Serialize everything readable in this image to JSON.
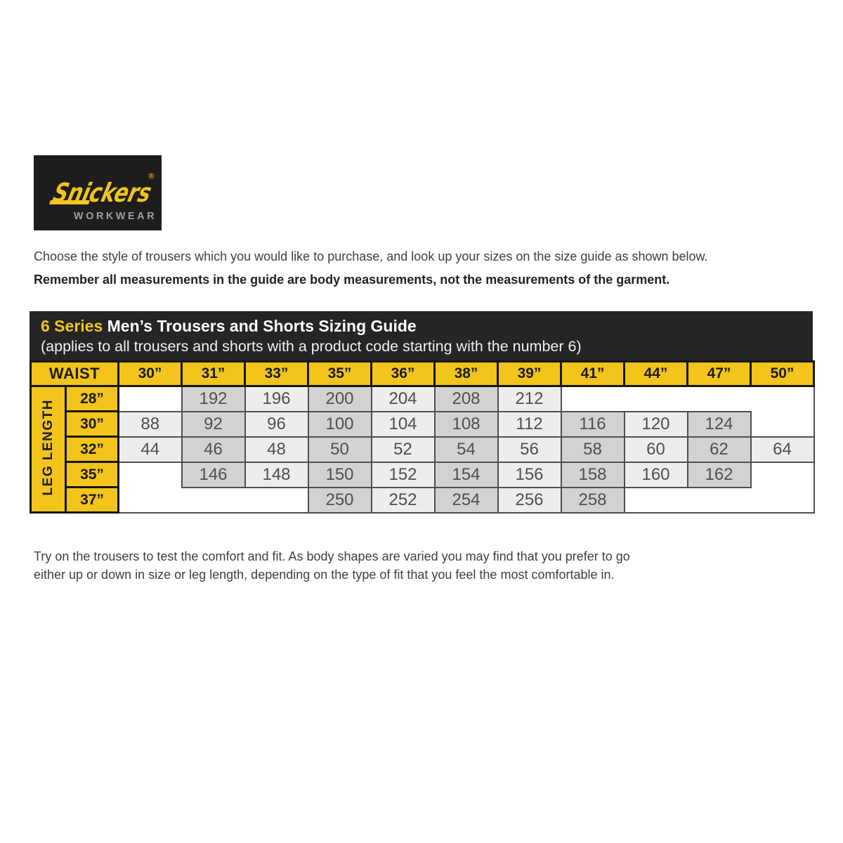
{
  "logo": {
    "brand": "Snickers",
    "registered": "®",
    "sub_brand": "WORKWEAR"
  },
  "intro": {
    "line1": "Choose the style of trousers which you would like to purchase, and look up your sizes on the size guide as shown below.",
    "line2_bold": "Remember all measurements in the guide are body measurements, not the measurements of the garment."
  },
  "sizing_table": {
    "series_label": "6 Series",
    "title": " Men’s Trousers and Shorts Sizing Guide",
    "subtitle": "(applies to all trousers and shorts with a product code starting with the number 6)",
    "waist_label": "WAIST",
    "leg_length_label": "LEG LENGTH",
    "waist_sizes": [
      "30”",
      "31”",
      "33”",
      "35”",
      "36”",
      "38”",
      "39”",
      "41”",
      "44”",
      "47”",
      "50”"
    ],
    "leg_rows": [
      {
        "leg": "28”",
        "values": [
          null,
          "192",
          "196",
          "200",
          "204",
          "208",
          "212",
          null,
          null,
          null,
          null
        ]
      },
      {
        "leg": "30”",
        "values": [
          "88",
          "92",
          "96",
          "100",
          "104",
          "108",
          "112",
          "116",
          "120",
          "124",
          null
        ]
      },
      {
        "leg": "32”",
        "values": [
          "44",
          "46",
          "48",
          "50",
          "52",
          "54",
          "56",
          "58",
          "60",
          "62",
          "64"
        ]
      },
      {
        "leg": "35”",
        "values": [
          null,
          "146",
          "148",
          "150",
          "152",
          "154",
          "156",
          "158",
          "160",
          "162",
          null
        ]
      },
      {
        "leg": "37”",
        "values": [
          null,
          null,
          null,
          "250",
          "252",
          "254",
          "256",
          "258",
          null,
          null,
          null
        ]
      }
    ]
  },
  "footer": {
    "line1": "Try on the trousers to test the comfort and fit. As body shapes are varied you may find that you prefer to go",
    "line2": "either up or down in size or leg length, depending on the type of fit that you feel the most comfortable in."
  },
  "colors": {
    "brand_yellow": "#f2c41c",
    "logo_black": "#1d1d1d",
    "title_bar_bg": "#252525",
    "cell_light": "#ededed",
    "cell_dark": "#d2d2d2",
    "cell_border": "#4f4f4f",
    "cell_text": "#4f4f4f",
    "yellow_cell_border": "#161616"
  }
}
